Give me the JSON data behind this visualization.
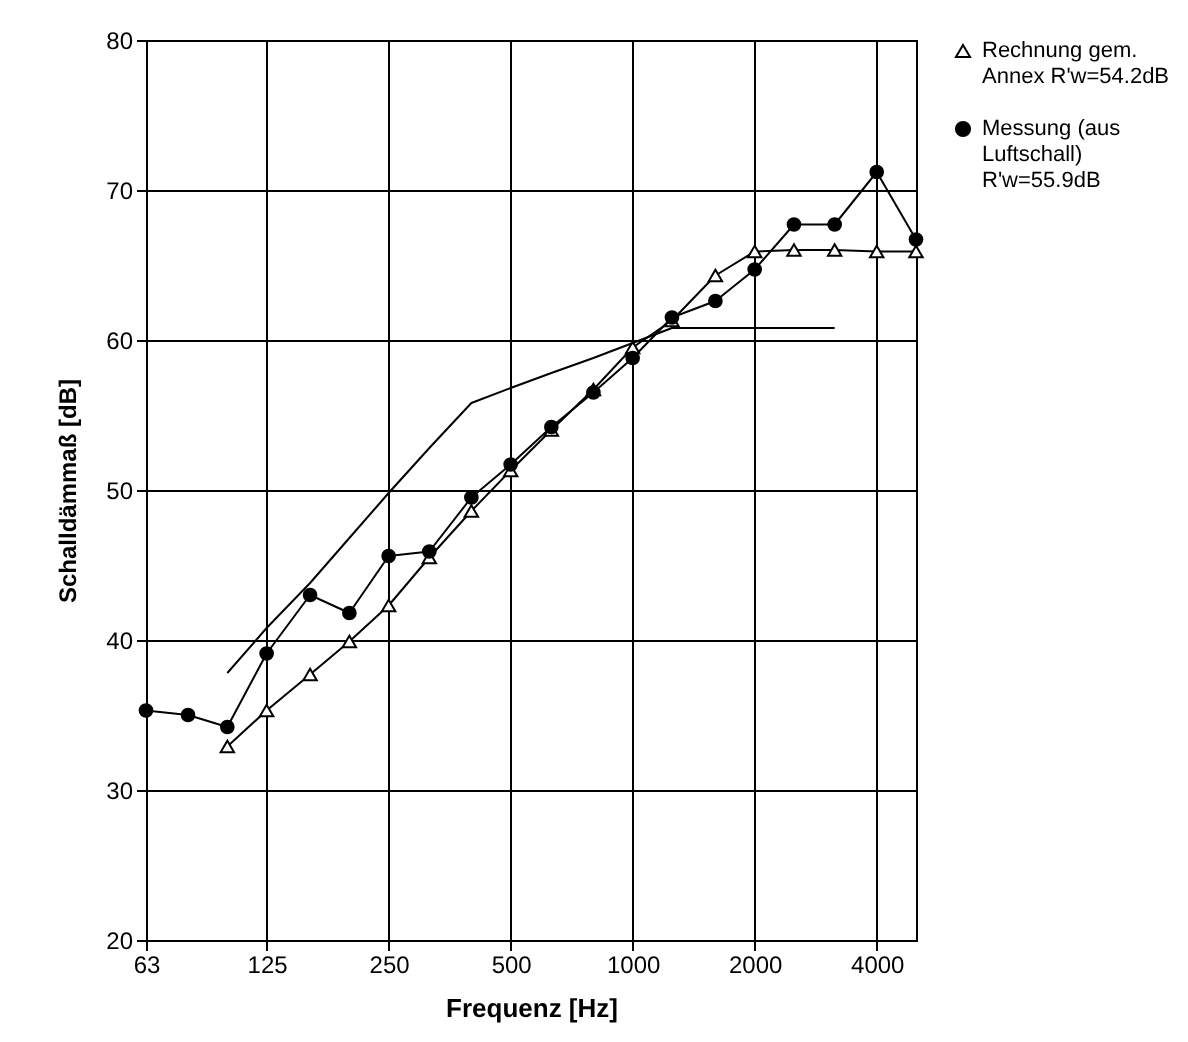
{
  "chart_data": {
    "type": "line",
    "xlabel": "Frequenz [Hz]",
    "ylabel": "Schalldämmaß [dB]",
    "log": "x",
    "xlim": [
      63,
      5000
    ],
    "xticks": [
      63,
      125,
      250,
      500,
      1000,
      2000,
      4000
    ],
    "ylim": [
      20,
      80
    ],
    "yticks": [
      20,
      30,
      40,
      50,
      60,
      70,
      80
    ],
    "grid": true,
    "legend": "right",
    "series": [
      {
        "name": "Rechnung gem. Annex R'w=54.2dB",
        "color": "#000000",
        "marker": "triangle",
        "x": [
          100,
          125,
          160,
          200,
          250,
          315,
          400,
          500,
          630,
          800,
          1000,
          1250,
          1600,
          2000,
          2500,
          3150,
          4000,
          5000
        ],
        "values": [
          32.9,
          35.3,
          37.7,
          39.9,
          42.3,
          45.5,
          48.6,
          51.3,
          54.0,
          56.7,
          59.5,
          61.3,
          64.3,
          65.9,
          66.0,
          66.0,
          65.9,
          65.9
        ]
      },
      {
        "name": "Messung (aus Luftschall) R'w=55.9dB",
        "color": "#000000",
        "marker": "circle",
        "x": [
          63,
          80,
          100,
          125,
          160,
          200,
          250,
          315,
          400,
          500,
          630,
          800,
          1000,
          1250,
          1600,
          2000,
          2500,
          3150,
          4000,
          5000
        ],
        "values": [
          35.3,
          35.0,
          34.2,
          39.1,
          43.0,
          41.8,
          45.6,
          45.9,
          49.5,
          51.7,
          54.2,
          56.5,
          58.8,
          61.5,
          62.6,
          64.7,
          67.7,
          67.7,
          71.2,
          66.7
        ]
      },
      {
        "color": "#000000",
        "marker": "none",
        "x": [
          100,
          125,
          160,
          200,
          250,
          315,
          400,
          500,
          630,
          800,
          1000,
          1250,
          1600,
          2000,
          2500,
          3150
        ],
        "values": [
          37.8,
          40.8,
          43.8,
          46.8,
          49.8,
          52.8,
          55.8,
          56.8,
          57.8,
          58.8,
          59.8,
          60.8,
          60.8,
          60.8,
          60.8,
          60.8
        ]
      }
    ]
  }
}
